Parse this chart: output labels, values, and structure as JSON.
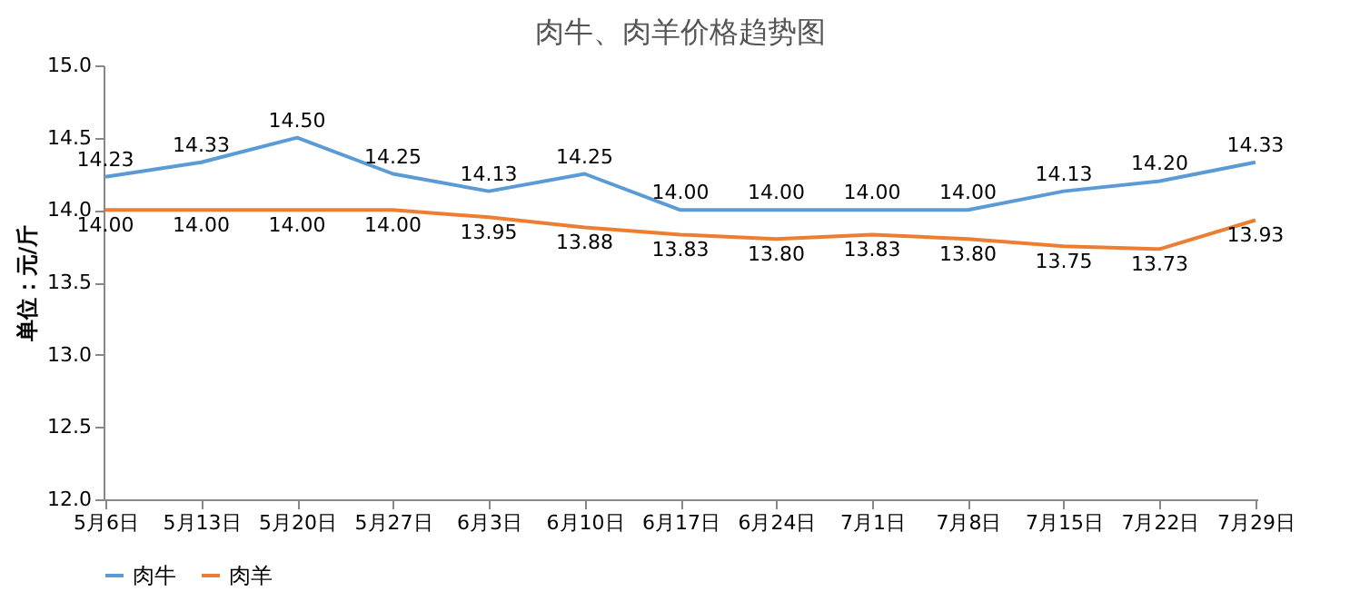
{
  "chart_data": {
    "type": "line",
    "title": "肉牛、肉羊价格趋势图",
    "ylabel": "单位：元/斤",
    "categories": [
      "5月6日",
      "5月13日",
      "5月20日",
      "5月27日",
      "6月3日",
      "6月10日",
      "6月17日",
      "6月24日",
      "7月1日",
      "7月8日",
      "7月15日",
      "7月22日",
      "7月29日"
    ],
    "series": [
      {
        "name": "肉牛",
        "color": "#5b9bd5",
        "values": [
          14.23,
          14.33,
          14.5,
          14.25,
          14.13,
          14.25,
          14.0,
          14.0,
          14.0,
          14.0,
          14.13,
          14.2,
          14.33
        ],
        "value_labels": [
          "14.23",
          "14.33",
          "14.50",
          "14.25",
          "14.13",
          "14.25",
          "14.00",
          "14.00",
          "14.00",
          "14.00",
          "14.13",
          "14.20",
          "14.33"
        ]
      },
      {
        "name": "肉羊",
        "color": "#ed7d31",
        "values": [
          14.0,
          14.0,
          14.0,
          14.0,
          13.95,
          13.88,
          13.83,
          13.8,
          13.83,
          13.8,
          13.75,
          13.73,
          13.93
        ],
        "value_labels": [
          "14.00",
          "14.00",
          "14.00",
          "14.00",
          "13.95",
          "13.88",
          "13.83",
          "13.80",
          "13.83",
          "13.80",
          "13.75",
          "13.73",
          "13.93"
        ]
      }
    ],
    "ylim": [
      12.0,
      15.0
    ],
    "yticks": [
      {
        "value": 12,
        "label": "12.0"
      },
      {
        "value": 12.5,
        "label": "12.5"
      },
      {
        "value": 13,
        "label": "13.0"
      },
      {
        "value": 13.5,
        "label": "13.5"
      },
      {
        "value": 14,
        "label": "14.0"
      },
      {
        "value": 14.5,
        "label": "14.5"
      },
      {
        "value": 15,
        "label": "15.0"
      }
    ],
    "grid": false,
    "legend": "bottom",
    "marker": "none",
    "line_style": "solid"
  }
}
